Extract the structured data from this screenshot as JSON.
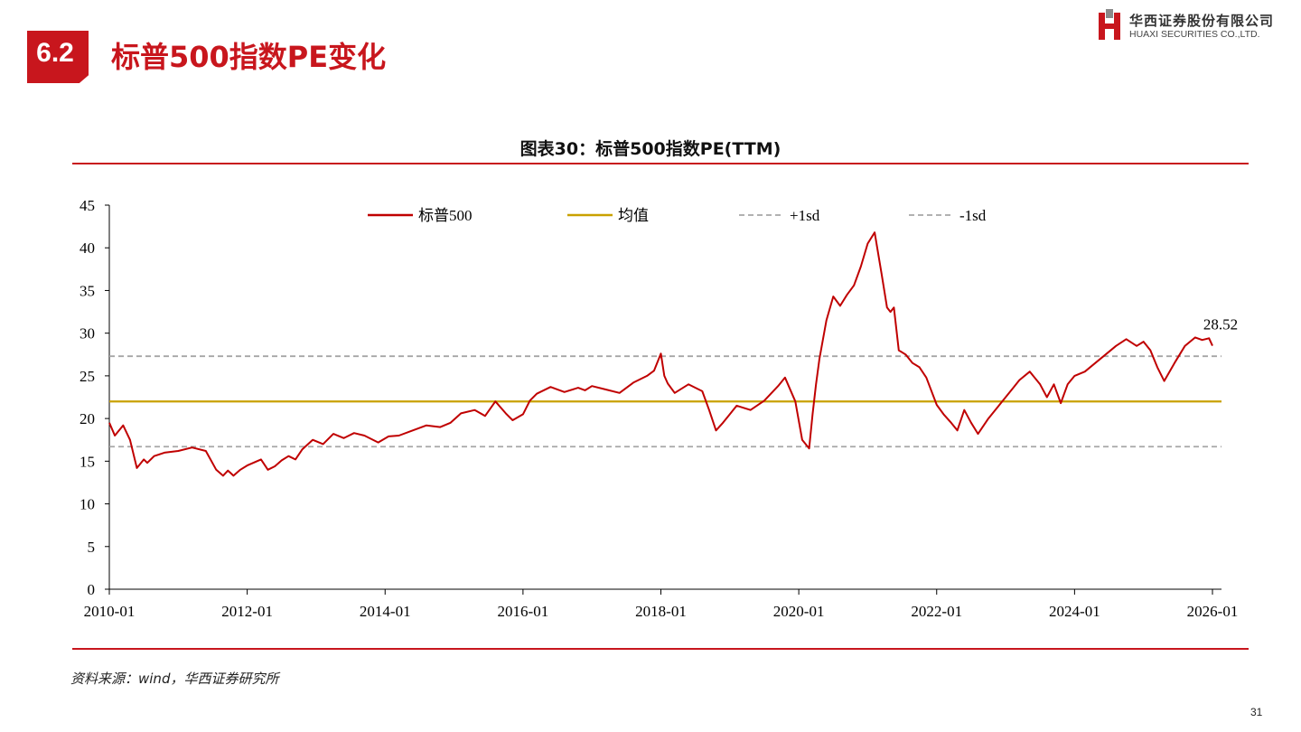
{
  "header": {
    "section_number": "6.2",
    "title": "标普500指数PE变化"
  },
  "logo": {
    "name_cn": "华西证券股份有限公司",
    "name_en": "HUAXI SECURITIES CO.,LTD."
  },
  "figure": {
    "title": "图表30：标普500指数PE(TTM)"
  },
  "chart_data": {
    "type": "line",
    "title": "图表30：标普500指数PE(TTM)",
    "xlabel": "",
    "ylabel": "",
    "x_ticks": [
      "2010-01",
      "2012-01",
      "2014-01",
      "2016-01",
      "2018-01",
      "2020-01",
      "2022-01",
      "2024-01",
      "2026-01"
    ],
    "y_ticks": [
      0,
      5,
      10,
      15,
      20,
      25,
      30,
      35,
      40,
      45
    ],
    "ylim": [
      0,
      45
    ],
    "xlim": [
      2010.0,
      2026.0
    ],
    "grid": false,
    "legend_position": "top",
    "series": [
      {
        "name": "标普500",
        "color": "#c00000",
        "style": "solid",
        "x": [
          2010.0,
          2010.08,
          2010.2,
          2010.3,
          2010.4,
          2010.5,
          2010.55,
          2010.65,
          2010.8,
          2011.0,
          2011.2,
          2011.4,
          2011.55,
          2011.65,
          2011.72,
          2011.8,
          2011.9,
          2012.0,
          2012.2,
          2012.3,
          2012.4,
          2012.5,
          2012.6,
          2012.7,
          2012.8,
          2012.95,
          2013.1,
          2013.25,
          2013.4,
          2013.55,
          2013.7,
          2013.9,
          2014.05,
          2014.2,
          2014.4,
          2014.6,
          2014.8,
          2014.95,
          2015.1,
          2015.3,
          2015.45,
          2015.6,
          2015.75,
          2015.85,
          2016.0,
          2016.1,
          2016.2,
          2016.4,
          2016.6,
          2016.8,
          2016.9,
          2017.0,
          2017.2,
          2017.4,
          2017.6,
          2017.8,
          2017.9,
          2018.0,
          2018.05,
          2018.1,
          2018.2,
          2018.4,
          2018.6,
          2018.7,
          2018.8,
          2018.9,
          2019.0,
          2019.1,
          2019.3,
          2019.5,
          2019.7,
          2019.8,
          2019.95,
          2020.05,
          2020.15,
          2020.2,
          2020.25,
          2020.3,
          2020.4,
          2020.5,
          2020.6,
          2020.7,
          2020.8,
          2020.9,
          2021.0,
          2021.1,
          2021.2,
          2021.28,
          2021.33,
          2021.38,
          2021.45,
          2021.55,
          2021.65,
          2021.75,
          2021.85,
          2022.0,
          2022.1,
          2022.2,
          2022.3,
          2022.4,
          2022.5,
          2022.6,
          2022.75,
          2022.85,
          2023.0,
          2023.1,
          2023.2,
          2023.35,
          2023.5,
          2023.6,
          2023.7,
          2023.8,
          2023.9,
          2024.0,
          2024.15,
          2024.3,
          2024.45,
          2024.6,
          2024.75,
          2024.9,
          2025.0,
          2025.1,
          2025.2,
          2025.3,
          2025.45,
          2025.6,
          2025.75,
          2025.85,
          2025.95,
          2026.0
        ],
        "y": [
          19.5,
          18.0,
          19.2,
          17.5,
          14.2,
          15.2,
          14.8,
          15.6,
          16.0,
          16.2,
          16.6,
          16.2,
          14.0,
          13.3,
          13.9,
          13.3,
          14.0,
          14.5,
          15.2,
          14.0,
          14.4,
          15.1,
          15.6,
          15.2,
          16.4,
          17.5,
          17.0,
          18.2,
          17.7,
          18.3,
          18.0,
          17.2,
          17.9,
          18.0,
          18.6,
          19.2,
          19.0,
          19.5,
          20.6,
          21.0,
          20.3,
          22.0,
          20.6,
          19.8,
          20.5,
          22.1,
          22.9,
          23.7,
          23.1,
          23.6,
          23.3,
          23.8,
          23.4,
          23.0,
          24.2,
          25.0,
          25.6,
          27.6,
          25.0,
          24.1,
          23.0,
          24.0,
          23.2,
          21.0,
          18.6,
          19.5,
          20.5,
          21.5,
          21.0,
          22.1,
          23.8,
          24.8,
          22.0,
          17.5,
          16.5,
          20.5,
          24.0,
          27.0,
          31.5,
          34.3,
          33.2,
          34.5,
          35.6,
          37.8,
          40.5,
          41.8,
          37.0,
          33.0,
          32.5,
          33.0,
          28.0,
          27.5,
          26.5,
          26.0,
          24.8,
          21.6,
          20.5,
          19.6,
          18.6,
          21.0,
          19.5,
          18.2,
          20.0,
          21.0,
          22.5,
          23.5,
          24.5,
          25.5,
          24.0,
          22.5,
          24.0,
          21.8,
          24.0,
          25.0,
          25.5,
          26.5,
          27.5,
          28.5,
          29.3,
          28.5,
          29.0,
          28.0,
          26.0,
          24.4,
          26.5,
          28.5,
          29.5,
          29.2,
          29.4,
          28.52
        ]
      },
      {
        "name": "均值",
        "color": "#c9a100",
        "style": "solid",
        "value": 22.0
      },
      {
        "name": "+1sd",
        "color": "#a6a6a6",
        "style": "dashed",
        "value": 27.3
      },
      {
        "name": "-1sd",
        "color": "#a6a6a6",
        "style": "dashed",
        "value": 16.7
      }
    ],
    "annotations": [
      {
        "text": "28.52",
        "x": 2026.0,
        "y": 28.52
      }
    ]
  },
  "source": {
    "text": "资料来源：wind，华西证券研究所"
  },
  "page": {
    "number": "31"
  }
}
